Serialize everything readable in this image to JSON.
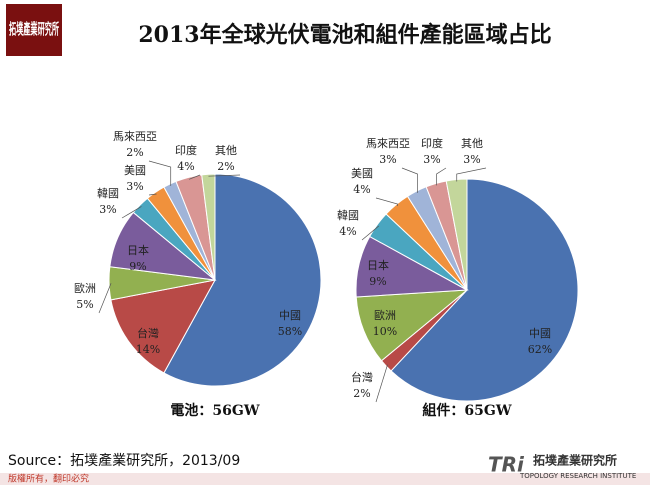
{
  "logo": "拓墣產業研究所",
  "title": "2013年全球光伏電池和組件產能區域占比",
  "chart_data": [
    {
      "type": "pie",
      "title": "電池：56GW",
      "categories": [
        "中國",
        "台灣",
        "歐洲",
        "日本",
        "韓國",
        "美國",
        "馬來西亞",
        "印度",
        "其他"
      ],
      "values": [
        58,
        14,
        5,
        9,
        3,
        3,
        2,
        4,
        2
      ],
      "value_labels": [
        "58%",
        "14%",
        "5%",
        "9%",
        "3%",
        "3%",
        "2%",
        "4%",
        "2%"
      ],
      "colors": [
        "#4a72b0",
        "#b84a47",
        "#92b050",
        "#7a5c9c",
        "#4aa6c0",
        "#f0913c",
        "#a0b4d8",
        "#d99694",
        "#c3d69b"
      ]
    },
    {
      "type": "pie",
      "title": "組件：65GW",
      "categories": [
        "中國",
        "台灣",
        "歐洲",
        "日本",
        "韓國",
        "美國",
        "馬來西亞",
        "印度",
        "其他"
      ],
      "values": [
        62,
        2,
        10,
        9,
        4,
        4,
        3,
        3,
        3
      ],
      "value_labels": [
        "62%",
        "2%",
        "10%",
        "9%",
        "4%",
        "4%",
        "3%",
        "3%",
        "3%"
      ],
      "colors": [
        "#4a72b0",
        "#b84a47",
        "#92b050",
        "#7a5c9c",
        "#4aa6c0",
        "#f0913c",
        "#a0b4d8",
        "#d99694",
        "#c3d69b"
      ]
    }
  ],
  "source": "Source：拓墣產業研究所，2013/09",
  "copyright": "版權所有，翻印必究",
  "footer_logo": {
    "mark": "TRi",
    "name": "拓墣產業研究所",
    "english": "TOPOLOGY RESEARCH INSTITUTE"
  }
}
